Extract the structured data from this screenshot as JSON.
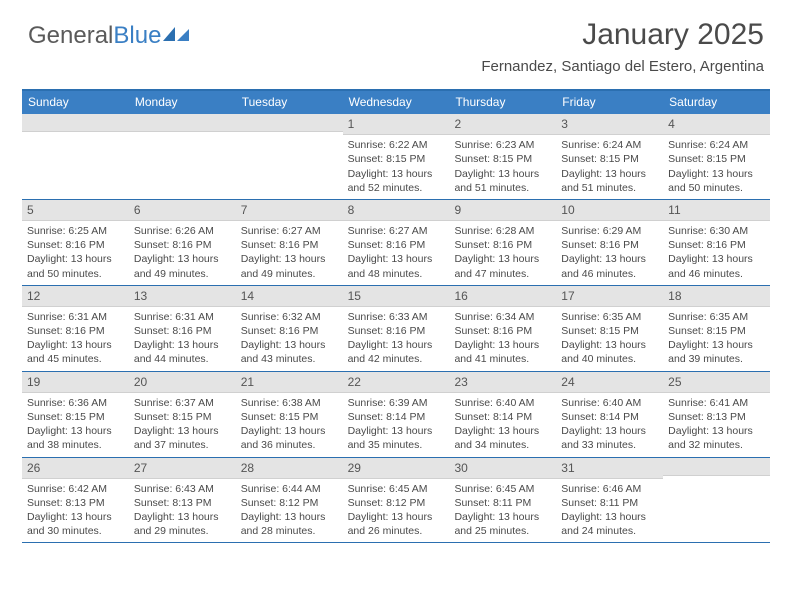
{
  "brand": {
    "part1": "General",
    "part2": "Blue"
  },
  "title": "January 2025",
  "location": "Fernandez, Santiago del Estero, Argentina",
  "colors": {
    "header_bg": "#3a7fc4",
    "header_text": "#ffffff",
    "border": "#2b6fb0",
    "daynum_bg": "#e4e4e4",
    "text": "#4a4a4a",
    "page_bg": "#ffffff"
  },
  "fonts": {
    "title_size": 30,
    "location_size": 15,
    "dayheader_size": 12,
    "daynum_size": 12,
    "body_size": 10.5
  },
  "day_headers": [
    "Sunday",
    "Monday",
    "Tuesday",
    "Wednesday",
    "Thursday",
    "Friday",
    "Saturday"
  ],
  "weeks": [
    [
      {
        "num": "",
        "lines": []
      },
      {
        "num": "",
        "lines": []
      },
      {
        "num": "",
        "lines": []
      },
      {
        "num": "1",
        "lines": [
          "Sunrise: 6:22 AM",
          "Sunset: 8:15 PM",
          "Daylight: 13 hours",
          "and 52 minutes."
        ]
      },
      {
        "num": "2",
        "lines": [
          "Sunrise: 6:23 AM",
          "Sunset: 8:15 PM",
          "Daylight: 13 hours",
          "and 51 minutes."
        ]
      },
      {
        "num": "3",
        "lines": [
          "Sunrise: 6:24 AM",
          "Sunset: 8:15 PM",
          "Daylight: 13 hours",
          "and 51 minutes."
        ]
      },
      {
        "num": "4",
        "lines": [
          "Sunrise: 6:24 AM",
          "Sunset: 8:15 PM",
          "Daylight: 13 hours",
          "and 50 minutes."
        ]
      }
    ],
    [
      {
        "num": "5",
        "lines": [
          "Sunrise: 6:25 AM",
          "Sunset: 8:16 PM",
          "Daylight: 13 hours",
          "and 50 minutes."
        ]
      },
      {
        "num": "6",
        "lines": [
          "Sunrise: 6:26 AM",
          "Sunset: 8:16 PM",
          "Daylight: 13 hours",
          "and 49 minutes."
        ]
      },
      {
        "num": "7",
        "lines": [
          "Sunrise: 6:27 AM",
          "Sunset: 8:16 PM",
          "Daylight: 13 hours",
          "and 49 minutes."
        ]
      },
      {
        "num": "8",
        "lines": [
          "Sunrise: 6:27 AM",
          "Sunset: 8:16 PM",
          "Daylight: 13 hours",
          "and 48 minutes."
        ]
      },
      {
        "num": "9",
        "lines": [
          "Sunrise: 6:28 AM",
          "Sunset: 8:16 PM",
          "Daylight: 13 hours",
          "and 47 minutes."
        ]
      },
      {
        "num": "10",
        "lines": [
          "Sunrise: 6:29 AM",
          "Sunset: 8:16 PM",
          "Daylight: 13 hours",
          "and 46 minutes."
        ]
      },
      {
        "num": "11",
        "lines": [
          "Sunrise: 6:30 AM",
          "Sunset: 8:16 PM",
          "Daylight: 13 hours",
          "and 46 minutes."
        ]
      }
    ],
    [
      {
        "num": "12",
        "lines": [
          "Sunrise: 6:31 AM",
          "Sunset: 8:16 PM",
          "Daylight: 13 hours",
          "and 45 minutes."
        ]
      },
      {
        "num": "13",
        "lines": [
          "Sunrise: 6:31 AM",
          "Sunset: 8:16 PM",
          "Daylight: 13 hours",
          "and 44 minutes."
        ]
      },
      {
        "num": "14",
        "lines": [
          "Sunrise: 6:32 AM",
          "Sunset: 8:16 PM",
          "Daylight: 13 hours",
          "and 43 minutes."
        ]
      },
      {
        "num": "15",
        "lines": [
          "Sunrise: 6:33 AM",
          "Sunset: 8:16 PM",
          "Daylight: 13 hours",
          "and 42 minutes."
        ]
      },
      {
        "num": "16",
        "lines": [
          "Sunrise: 6:34 AM",
          "Sunset: 8:16 PM",
          "Daylight: 13 hours",
          "and 41 minutes."
        ]
      },
      {
        "num": "17",
        "lines": [
          "Sunrise: 6:35 AM",
          "Sunset: 8:15 PM",
          "Daylight: 13 hours",
          "and 40 minutes."
        ]
      },
      {
        "num": "18",
        "lines": [
          "Sunrise: 6:35 AM",
          "Sunset: 8:15 PM",
          "Daylight: 13 hours",
          "and 39 minutes."
        ]
      }
    ],
    [
      {
        "num": "19",
        "lines": [
          "Sunrise: 6:36 AM",
          "Sunset: 8:15 PM",
          "Daylight: 13 hours",
          "and 38 minutes."
        ]
      },
      {
        "num": "20",
        "lines": [
          "Sunrise: 6:37 AM",
          "Sunset: 8:15 PM",
          "Daylight: 13 hours",
          "and 37 minutes."
        ]
      },
      {
        "num": "21",
        "lines": [
          "Sunrise: 6:38 AM",
          "Sunset: 8:15 PM",
          "Daylight: 13 hours",
          "and 36 minutes."
        ]
      },
      {
        "num": "22",
        "lines": [
          "Sunrise: 6:39 AM",
          "Sunset: 8:14 PM",
          "Daylight: 13 hours",
          "and 35 minutes."
        ]
      },
      {
        "num": "23",
        "lines": [
          "Sunrise: 6:40 AM",
          "Sunset: 8:14 PM",
          "Daylight: 13 hours",
          "and 34 minutes."
        ]
      },
      {
        "num": "24",
        "lines": [
          "Sunrise: 6:40 AM",
          "Sunset: 8:14 PM",
          "Daylight: 13 hours",
          "and 33 minutes."
        ]
      },
      {
        "num": "25",
        "lines": [
          "Sunrise: 6:41 AM",
          "Sunset: 8:13 PM",
          "Daylight: 13 hours",
          "and 32 minutes."
        ]
      }
    ],
    [
      {
        "num": "26",
        "lines": [
          "Sunrise: 6:42 AM",
          "Sunset: 8:13 PM",
          "Daylight: 13 hours",
          "and 30 minutes."
        ]
      },
      {
        "num": "27",
        "lines": [
          "Sunrise: 6:43 AM",
          "Sunset: 8:13 PM",
          "Daylight: 13 hours",
          "and 29 minutes."
        ]
      },
      {
        "num": "28",
        "lines": [
          "Sunrise: 6:44 AM",
          "Sunset: 8:12 PM",
          "Daylight: 13 hours",
          "and 28 minutes."
        ]
      },
      {
        "num": "29",
        "lines": [
          "Sunrise: 6:45 AM",
          "Sunset: 8:12 PM",
          "Daylight: 13 hours",
          "and 26 minutes."
        ]
      },
      {
        "num": "30",
        "lines": [
          "Sunrise: 6:45 AM",
          "Sunset: 8:11 PM",
          "Daylight: 13 hours",
          "and 25 minutes."
        ]
      },
      {
        "num": "31",
        "lines": [
          "Sunrise: 6:46 AM",
          "Sunset: 8:11 PM",
          "Daylight: 13 hours",
          "and 24 minutes."
        ]
      },
      {
        "num": "",
        "lines": []
      }
    ]
  ]
}
